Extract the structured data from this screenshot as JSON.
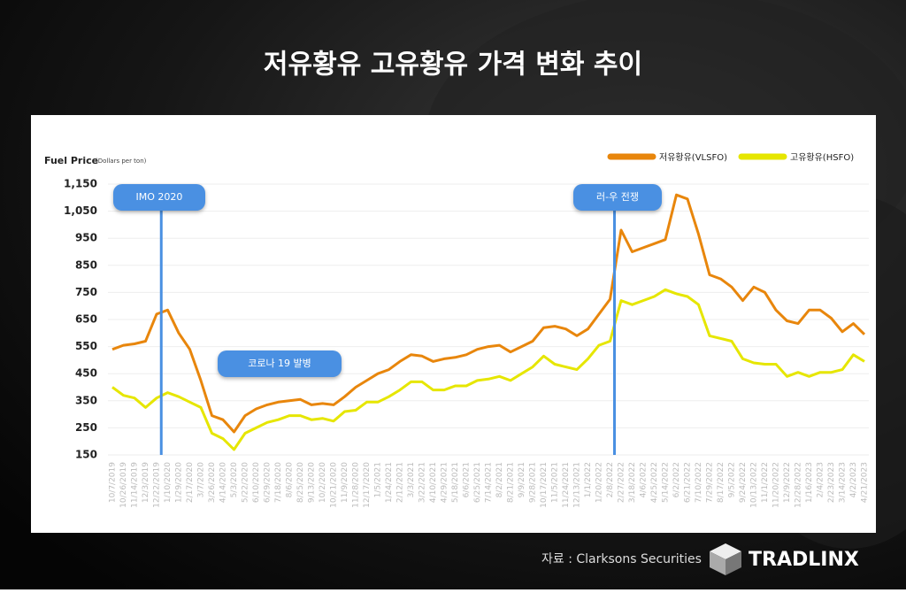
{
  "chart_data": {
    "type": "line",
    "title": "저유황유 고유황유 가격 변화 추이",
    "ylabel": "Fuel Price",
    "ylabel_unit": "(Dollars per ton)",
    "categories": [
      "10/7/2019",
      "10/26/2019",
      "11/14/2019",
      "12/3/2019",
      "12/22/2019",
      "1/10/2020",
      "1/29/2020",
      "2/17/2020",
      "3/7/2020",
      "3/26/2020",
      "4/14/2020",
      "5/3/2020",
      "5/22/2020",
      "6/10/2020",
      "6/29/2020",
      "7/18/2020",
      "8/6/2020",
      "8/25/2020",
      "9/13/2020",
      "10/2/2020",
      "10/21/2020",
      "11/9/2020",
      "11/28/2020",
      "12/17/2020",
      "1/5/2021",
      "1/24/2021",
      "2/12/2021",
      "3/3/2021",
      "3/22/2021",
      "4/10/2021",
      "4/29/2021",
      "5/18/2021",
      "6/6/2021",
      "6/25/2021",
      "7/14/2021",
      "8/2/2021",
      "8/21/2021",
      "9/9/2021",
      "9/28/2021",
      "10/17/2021",
      "11/5/2021",
      "11/24/2021",
      "12/13/2021",
      "1/1/2022",
      "1/20/2022",
      "2/8/2022",
      "2/27/2022",
      "3/18/2022",
      "4/6/2022",
      "4/25/2022",
      "5/14/2022",
      "6/2/2022",
      "6/21/2022",
      "7/10/2022",
      "7/29/2022",
      "8/17/2022",
      "9/5/2022",
      "9/24/2022",
      "10/13/2022",
      "11/1/2022",
      "11/20/2022",
      "12/9/2022",
      "12/28/2022",
      "1/16/2023",
      "2/4/2023",
      "2/23/2023",
      "3/14/2023",
      "4/2/2023",
      "4/21/2023"
    ],
    "series": [
      {
        "name": "저유황유(VLSFO)",
        "color": "#e8860c",
        "values": [
          540,
          555,
          560,
          570,
          670,
          685,
          600,
          540,
          425,
          295,
          280,
          235,
          295,
          320,
          335,
          345,
          350,
          355,
          335,
          340,
          335,
          365,
          400,
          425,
          450,
          465,
          495,
          520,
          515,
          495,
          505,
          510,
          520,
          540,
          550,
          555,
          530,
          550,
          570,
          620,
          625,
          615,
          590,
          615,
          670,
          725,
          980,
          900,
          915,
          930,
          945,
          1110,
          1095,
          965,
          815,
          800,
          770,
          720,
          770,
          750,
          685,
          645,
          635,
          685,
          685,
          655,
          605,
          635,
          595
        ]
      },
      {
        "name": "고유황유(HSFO)",
        "color": "#e6e600",
        "values": [
          400,
          370,
          360,
          325,
          360,
          380,
          365,
          345,
          325,
          230,
          210,
          170,
          230,
          250,
          270,
          280,
          295,
          295,
          280,
          285,
          275,
          310,
          315,
          345,
          345,
          365,
          390,
          420,
          420,
          390,
          390,
          405,
          405,
          425,
          430,
          440,
          425,
          450,
          475,
          515,
          485,
          475,
          465,
          505,
          555,
          570,
          720,
          705,
          720,
          735,
          760,
          745,
          735,
          705,
          590,
          580,
          570,
          505,
          490,
          485,
          485,
          440,
          455,
          440,
          455,
          455,
          465,
          520,
          495
        ]
      }
    ],
    "ylim": [
      150,
      1150
    ],
    "yticks": [
      150,
      250,
      350,
      450,
      550,
      650,
      750,
      850,
      950,
      {
        "value": 1050,
        "label": "1,050"
      },
      {
        "value": 1150,
        "label": "1,150"
      }
    ],
    "grid": true,
    "legend": "top-right",
    "annotations": [
      "IMO 2020",
      "러-우 전쟁",
      "코로나 19 발병"
    ]
  },
  "source": "자료 : Clarksons Securities",
  "brand": "TRADLINX"
}
